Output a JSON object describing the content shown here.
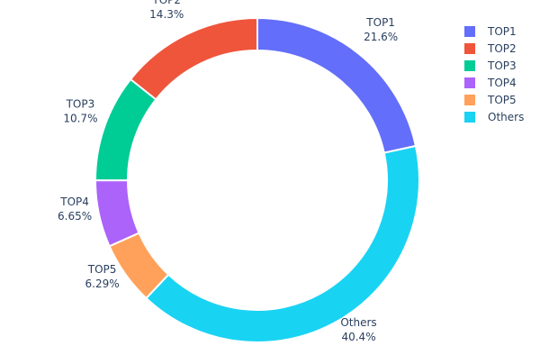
{
  "chart_data": {
    "type": "pie",
    "hole": 0.8,
    "direction": "clockwise",
    "start": "top",
    "categories": [
      "TOP1",
      "TOP2",
      "TOP3",
      "TOP4",
      "TOP5",
      "Others"
    ],
    "values": [
      21.6,
      14.3,
      10.7,
      6.65,
      6.29,
      40.4
    ],
    "value_labels": [
      "21.6%",
      "14.3%",
      "10.7%",
      "6.65%",
      "6.29%",
      "40.4%"
    ],
    "slice_order": [
      "TOP1",
      "Others",
      "TOP5",
      "TOP4",
      "TOP3",
      "TOP2"
    ],
    "colors": {
      "TOP1": "#636efa",
      "TOP2": "#ef553b",
      "TOP3": "#00cc96",
      "TOP4": "#ab63fa",
      "TOP5": "#ffa15a",
      "Others": "#19d3f3"
    },
    "legend": {
      "placement": "top-right",
      "entries": [
        "TOP1",
        "TOP2",
        "TOP3",
        "TOP4",
        "TOP5",
        "Others"
      ]
    }
  }
}
